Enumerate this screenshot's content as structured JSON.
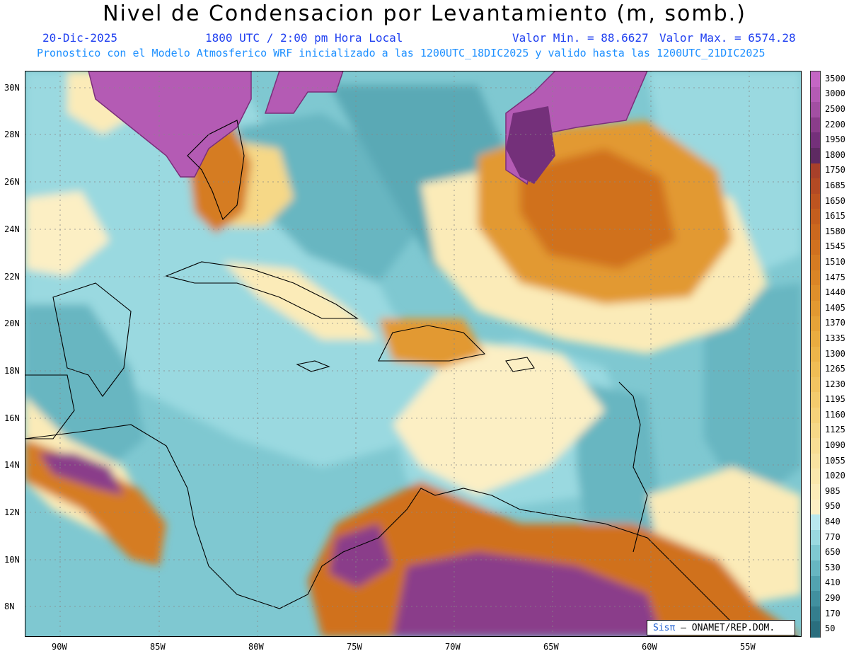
{
  "header": {
    "title": "Nivel de Condensacion por Levantamiento (m, somb.)",
    "date": "20-Dic-2025",
    "time": "1800 UTC / 2:00 pm Hora Local",
    "min_label": "Valor Min. = 88.6627",
    "max_label": "Valor Max. = 6574.28",
    "model_line": "Pronostico con el Modelo Atmosferico WRF inicializado a las 1200UTC_18DIC2025 y valido hasta las  1200UTC_21DIC2025"
  },
  "axes": {
    "lat_labels": [
      "30N",
      "28N",
      "26N",
      "24N",
      "22N",
      "20N",
      "18N",
      "16N",
      "14N",
      "12N",
      "10N",
      "8N"
    ],
    "lon_labels": [
      "90W",
      "85W",
      "80W",
      "75W",
      "70W",
      "65W",
      "60W",
      "55W"
    ]
  },
  "colorbar": {
    "labels": [
      "3500",
      "3000",
      "2500",
      "2200",
      "1950",
      "1800",
      "1750",
      "1685",
      "1650",
      "1615",
      "1580",
      "1545",
      "1510",
      "1475",
      "1440",
      "1405",
      "1370",
      "1335",
      "1300",
      "1265",
      "1230",
      "1195",
      "1160",
      "1125",
      "1090",
      "1055",
      "1020",
      "985",
      "950",
      "840",
      "770",
      "650",
      "530",
      "410",
      "290",
      "170",
      "50"
    ],
    "colors": [
      "#c466c4",
      "#b45bb4",
      "#a24fa2",
      "#8a3d8a",
      "#74307a",
      "#5e2a62",
      "#a8402a",
      "#b34a24",
      "#bd5420",
      "#c45e1e",
      "#cb681e",
      "#d0711f",
      "#d57b22",
      "#da8526",
      "#de8f2b",
      "#e29931",
      "#e6a338",
      "#e9ac40",
      "#ecb54a",
      "#efbd55",
      "#f1c461",
      "#f3cb6d",
      "#f5d27a",
      "#f6d887",
      "#f8dd94",
      "#f9e2a0",
      "#fae7ac",
      "#fbebb8",
      "#fcefc4",
      "#b8e8ee",
      "#9ad9e0",
      "#7fc8d1",
      "#67b6c1",
      "#52a3b0",
      "#41909f",
      "#347e8e",
      "#2a6e7e"
    ]
  },
  "credit": {
    "brand": "Sisπ",
    "text": "ONAMET/REP.DOM."
  }
}
